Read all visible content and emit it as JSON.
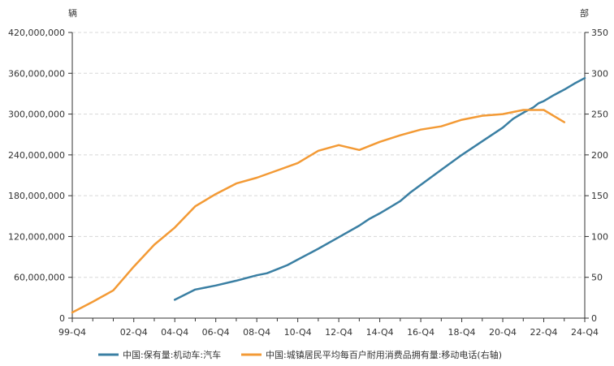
{
  "chart_data": {
    "type": "line",
    "left_unit": "辆",
    "right_unit": "部",
    "colors": {
      "cars": "#3a7fa3",
      "phones": "#f39a35",
      "axis": "#333333",
      "grid": "#d8d8d8"
    },
    "grid": true,
    "legend_position": "bottom",
    "y_left": {
      "min": 0,
      "max": 420000000,
      "ticks": [
        "0",
        "60,000,000",
        "120,000,000",
        "180,000,000",
        "240,000,000",
        "300,000,000",
        "360,000,000",
        "420,000,000"
      ],
      "tick_values": [
        0,
        60000000,
        120000000,
        180000000,
        240000000,
        300000000,
        360000000,
        420000000
      ]
    },
    "y_right": {
      "min": 0,
      "max": 350,
      "ticks": [
        "0",
        "50",
        "100",
        "150",
        "200",
        "250",
        "300",
        "350"
      ],
      "tick_values": [
        0,
        50,
        100,
        150,
        200,
        250,
        300,
        350
      ]
    },
    "x_axis": {
      "start": 1999.75,
      "end": 2024.75,
      "tick_labels": [
        "99-Q4",
        "02-Q4",
        "04-Q4",
        "06-Q4",
        "08-Q4",
        "10-Q4",
        "12-Q4",
        "14-Q4",
        "16-Q4",
        "18-Q4",
        "20-Q4",
        "22-Q4",
        "24-Q4"
      ],
      "tick_values": [
        1999.75,
        2002.75,
        2004.75,
        2006.75,
        2008.75,
        2010.75,
        2012.75,
        2014.75,
        2016.75,
        2018.75,
        2020.75,
        2022.75,
        2024.75
      ],
      "minor_tick_values": [
        2000.75,
        2001.75,
        2003.75,
        2005.75,
        2007.75,
        2009.75,
        2011.75,
        2013.75,
        2015.75,
        2017.75,
        2019.75,
        2021.75,
        2023.75
      ]
    },
    "series": [
      {
        "name": "中国:保有量:机动车:汽车",
        "axis": "left",
        "x": [
          2004.75,
          2005.75,
          2006.75,
          2007.75,
          2008.75,
          2009.25,
          2009.75,
          2010.25,
          2010.75,
          2011.75,
          2012.75,
          2013.75,
          2014.25,
          2014.75,
          2015.25,
          2015.75,
          2016.25,
          2016.75,
          2017.25,
          2017.75,
          2018.75,
          2019.75,
          2020.75,
          2021.25,
          2021.75,
          2022.25,
          2022.5,
          2022.75,
          2023.25,
          2023.75,
          2024.25,
          2024.75
        ],
        "values": [
          27000000,
          42000000,
          48000000,
          55000000,
          63000000,
          66000000,
          72000000,
          78000000,
          86000000,
          102000000,
          119000000,
          136000000,
          146000000,
          154000000,
          163000000,
          172000000,
          185000000,
          196000000,
          207000000,
          218000000,
          240000000,
          260000000,
          280000000,
          293000000,
          302000000,
          310000000,
          316000000,
          319000000,
          328000000,
          336000000,
          345000000,
          353000000
        ]
      },
      {
        "name": "中国:城镇居民平均每百户耐用消费品拥有量:移动电话(右轴)",
        "axis": "right",
        "x": [
          1999.75,
          2000.75,
          2001.75,
          2002.75,
          2003.75,
          2004.75,
          2005.75,
          2006.75,
          2007.75,
          2008.75,
          2009.75,
          2010.75,
          2011.75,
          2012.75,
          2013.75,
          2014.75,
          2015.75,
          2016.75,
          2017.75,
          2018.75,
          2019.75,
          2020.75,
          2021.75,
          2022.75,
          2023.75
        ],
        "values": [
          7,
          20,
          34,
          63,
          90,
          111,
          137,
          152,
          165,
          172,
          181,
          190,
          205,
          212,
          206,
          216,
          224,
          231,
          235,
          243,
          248,
          250,
          255,
          255,
          240
        ]
      }
    ]
  }
}
